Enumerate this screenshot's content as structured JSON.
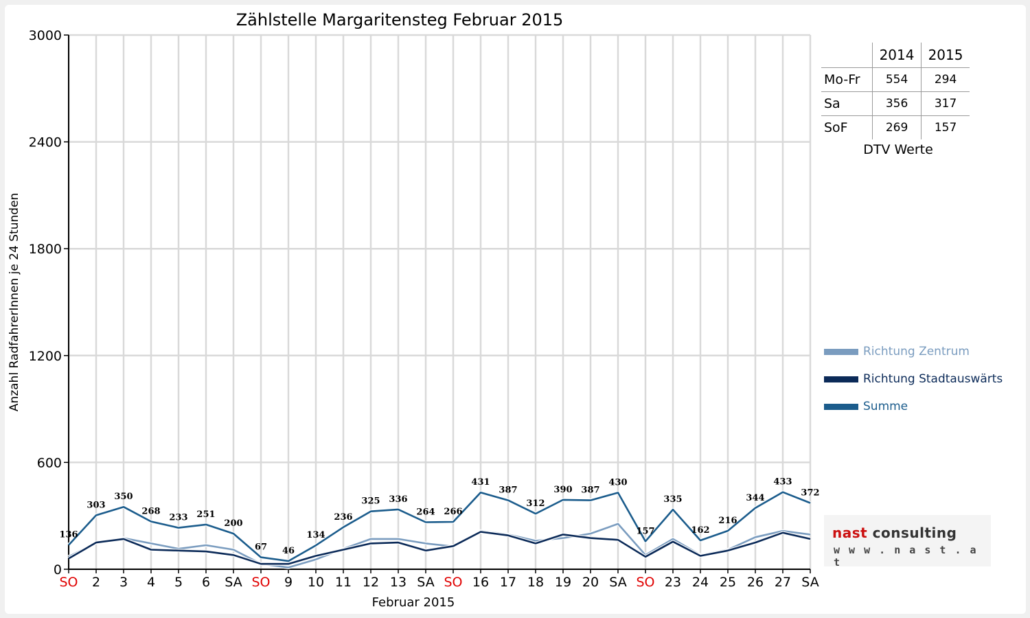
{
  "chart_data": {
    "type": "line",
    "title": "Zählstelle Margaritensteg Februar 2015",
    "xlabel": "Februar 2015",
    "ylabel": "Anzahl RadfahrerInnen je 24 Stunden",
    "ylim": [
      0,
      3000
    ],
    "yticks": [
      0,
      600,
      1200,
      1800,
      2400,
      3000
    ],
    "grid": true,
    "categories": [
      "SO",
      "2",
      "3",
      "4",
      "5",
      "6",
      "SA",
      "SO",
      "9",
      "10",
      "11",
      "12",
      "13",
      "SA",
      "SO",
      "16",
      "17",
      "18",
      "19",
      "20",
      "SA",
      "SO",
      "23",
      "24",
      "25",
      "26",
      "27",
      "SA"
    ],
    "holiday_categories": [
      "SO"
    ],
    "holiday_color": "#e00000",
    "legend_position": "right",
    "series": [
      {
        "name": "Richtung Zentrum",
        "color": "#7a9cbf",
        "values": [
          70,
          150,
          175,
          145,
          115,
          135,
          110,
          30,
          10,
          55,
          115,
          170,
          170,
          145,
          128,
          215,
          195,
          160,
          175,
          200,
          255,
          80,
          170,
          80,
          110,
          180,
          215,
          195
        ]
      },
      {
        "name": "Richtung Stadtauswärts",
        "color": "#0b2a58",
        "values": [
          60,
          150,
          170,
          110,
          105,
          100,
          80,
          30,
          30,
          75,
          110,
          145,
          150,
          105,
          130,
          210,
          190,
          145,
          195,
          175,
          165,
          70,
          155,
          75,
          105,
          150,
          205,
          170
        ]
      },
      {
        "name": "Summe",
        "color": "#1b5c8c",
        "values": [
          136,
          303,
          350,
          268,
          233,
          251,
          200,
          67,
          46,
          134,
          236,
          325,
          336,
          264,
          266,
          431,
          387,
          312,
          390,
          387,
          430,
          157,
          335,
          162,
          216,
          344,
          433,
          372
        ]
      }
    ],
    "data_labels": [
      "136",
      "303",
      "350",
      "268",
      "233",
      "251",
      "200",
      "67",
      "46",
      "134",
      "236",
      "325",
      "336",
      "264",
      "266",
      "431",
      "387",
      "312",
      "390",
      "387",
      "430",
      "157",
      "335",
      "162",
      "216",
      "344",
      "433",
      "372"
    ]
  },
  "dtv_table": {
    "columns": [
      "2014",
      "2015"
    ],
    "rows": [
      {
        "label": "Mo-Fr",
        "v2014": "554",
        "v2015": "294"
      },
      {
        "label": "Sa",
        "v2014": "356",
        "v2015": "317"
      },
      {
        "label": "SoF",
        "v2014": "269",
        "v2015": "157"
      }
    ],
    "caption": "DTV Werte"
  },
  "logo": {
    "line1_a": "nast",
    "line1_b": " consulting",
    "line2": "w w w . n a s t . a t",
    "color_a": "#cc1111",
    "color_b": "#333333"
  }
}
